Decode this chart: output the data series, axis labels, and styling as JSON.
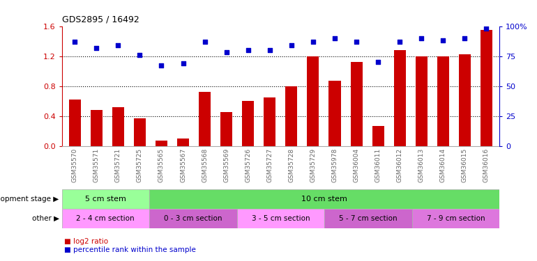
{
  "title": "GDS2895 / 16492",
  "samples": [
    "GSM35570",
    "GSM35571",
    "GSM35721",
    "GSM35725",
    "GSM35565",
    "GSM35567",
    "GSM35568",
    "GSM35569",
    "GSM35726",
    "GSM35727",
    "GSM35728",
    "GSM35729",
    "GSM35978",
    "GSM36004",
    "GSM36011",
    "GSM36012",
    "GSM36013",
    "GSM36014",
    "GSM36015",
    "GSM36016"
  ],
  "log2_ratio": [
    0.62,
    0.48,
    0.52,
    0.37,
    0.07,
    0.1,
    0.72,
    0.45,
    0.6,
    0.65,
    0.8,
    1.2,
    0.87,
    1.12,
    0.27,
    1.28,
    1.2,
    1.2,
    1.22,
    1.55
  ],
  "percentile": [
    87,
    82,
    84,
    76,
    67,
    69,
    87,
    78,
    80,
    80,
    84,
    87,
    90,
    87,
    70,
    87,
    90,
    88,
    90,
    98
  ],
  "ylim_left": [
    0.0,
    1.6
  ],
  "ylim_right": [
    0,
    100
  ],
  "yticks_left": [
    0,
    0.4,
    0.8,
    1.2,
    1.6
  ],
  "yticks_right": [
    0,
    25,
    50,
    75,
    100
  ],
  "bar_color": "#cc0000",
  "dot_color": "#0000cc",
  "bg_color": "#ffffff",
  "dev_stage_groups": [
    {
      "label": "5 cm stem",
      "start": 0,
      "end": 4,
      "color": "#99ff99"
    },
    {
      "label": "10 cm stem",
      "start": 4,
      "end": 20,
      "color": "#66dd66"
    }
  ],
  "other_groups": [
    {
      "label": "2 - 4 cm section",
      "start": 0,
      "end": 4,
      "color": "#ff99ff"
    },
    {
      "label": "0 - 3 cm section",
      "start": 4,
      "end": 8,
      "color": "#cc66cc"
    },
    {
      "label": "3 - 5 cm section",
      "start": 8,
      "end": 12,
      "color": "#ff99ff"
    },
    {
      "label": "5 - 7 cm section",
      "start": 12,
      "end": 16,
      "color": "#cc66cc"
    },
    {
      "label": "7 - 9 cm section",
      "start": 16,
      "end": 20,
      "color": "#dd77dd"
    }
  ],
  "dev_stage_label": "development stage",
  "other_label": "other"
}
